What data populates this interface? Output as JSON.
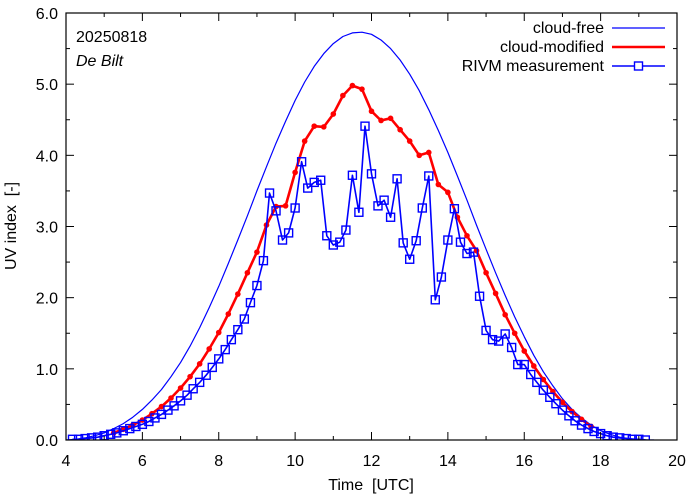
{
  "chart_data": {
    "type": "line",
    "title": "",
    "xlabel": "Time  [UTC]",
    "ylabel": "UV index  [-]",
    "xlim": [
      4,
      20
    ],
    "ylim": [
      0,
      6
    ],
    "x_ticks": [
      4,
      6,
      8,
      10,
      12,
      14,
      16,
      18,
      20
    ],
    "x_tick_labels": [
      "4",
      "6",
      "8",
      "10",
      "12",
      "14",
      "16",
      "18",
      "20"
    ],
    "x_minor_step": 1,
    "y_ticks": [
      0,
      1,
      2,
      3,
      4,
      5,
      6
    ],
    "y_tick_labels": [
      "0.0",
      "1.0",
      "2.0",
      "3.0",
      "4.0",
      "5.0",
      "6.0"
    ],
    "y_minor_step": 0.5,
    "grid": false,
    "legend_position": "top-right",
    "annotations": [
      {
        "text": "20250818",
        "style": "normal",
        "position": "top-left"
      },
      {
        "text": "De Bilt",
        "style": "italic",
        "position": "top-left"
      }
    ],
    "series": [
      {
        "name": "cloud-free",
        "color": "#0000ff",
        "style": "thin-line",
        "x": [
          4.0,
          4.25,
          4.5,
          4.75,
          5.0,
          5.25,
          5.5,
          5.75,
          6.0,
          6.25,
          6.5,
          6.75,
          7.0,
          7.25,
          7.5,
          7.75,
          8.0,
          8.25,
          8.5,
          8.75,
          9.0,
          9.25,
          9.5,
          9.75,
          10.0,
          10.25,
          10.5,
          10.75,
          11.0,
          11.25,
          11.5,
          11.75,
          12.0,
          12.25,
          12.5,
          12.75,
          13.0,
          13.25,
          13.5,
          13.75,
          14.0,
          14.25,
          14.5,
          14.75,
          15.0,
          15.25,
          15.5,
          15.75,
          16.0,
          16.25,
          16.5,
          16.75,
          17.0,
          17.25,
          17.5,
          17.75,
          18.0,
          18.25,
          18.5,
          18.75,
          19.0,
          19.25,
          19.4
        ],
        "values": [
          0.0,
          0.01,
          0.03,
          0.06,
          0.1,
          0.16,
          0.23,
          0.32,
          0.43,
          0.56,
          0.71,
          0.89,
          1.09,
          1.32,
          1.58,
          1.86,
          2.16,
          2.48,
          2.81,
          3.15,
          3.5,
          3.84,
          4.17,
          4.48,
          4.77,
          5.03,
          5.25,
          5.43,
          5.57,
          5.67,
          5.72,
          5.73,
          5.7,
          5.62,
          5.5,
          5.34,
          5.14,
          4.91,
          4.64,
          4.35,
          4.04,
          3.71,
          3.37,
          3.02,
          2.68,
          2.35,
          2.03,
          1.73,
          1.45,
          1.19,
          0.96,
          0.76,
          0.58,
          0.43,
          0.31,
          0.21,
          0.13,
          0.08,
          0.04,
          0.02,
          0.01,
          0.0,
          0.0
        ]
      },
      {
        "name": "cloud-modified",
        "color": "#ff0000",
        "style": "thick-line-dots",
        "x": [
          5.25,
          5.5,
          5.75,
          6.0,
          6.25,
          6.5,
          6.75,
          7.0,
          7.25,
          7.5,
          7.75,
          8.0,
          8.25,
          8.5,
          8.75,
          9.0,
          9.25,
          9.5,
          9.75,
          10.0,
          10.25,
          10.5,
          10.75,
          11.0,
          11.25,
          11.5,
          11.75,
          12.0,
          12.25,
          12.5,
          12.75,
          13.0,
          13.25,
          13.5,
          13.75,
          14.0,
          14.25,
          14.5,
          14.75,
          15.0,
          15.25,
          15.5,
          15.75,
          16.0,
          16.25,
          16.5,
          16.75,
          17.0,
          17.25,
          17.5,
          17.75
        ],
        "values": [
          0.1,
          0.15,
          0.21,
          0.28,
          0.37,
          0.47,
          0.59,
          0.73,
          0.89,
          1.07,
          1.28,
          1.51,
          1.77,
          2.05,
          2.35,
          2.64,
          3.02,
          3.28,
          3.29,
          3.76,
          4.2,
          4.41,
          4.4,
          4.58,
          4.84,
          4.98,
          4.93,
          4.62,
          4.49,
          4.52,
          4.36,
          4.2,
          4.0,
          4.04,
          3.59,
          3.48,
          3.13,
          2.87,
          2.66,
          2.35,
          2.06,
          1.76,
          1.5,
          1.25,
          1.04,
          0.85,
          0.68,
          0.53,
          0.4,
          0.29,
          0.19
        ]
      },
      {
        "name": "RIVM measurement",
        "color": "#0000ff",
        "style": "line-squares",
        "x": [
          4.17,
          4.33,
          4.5,
          4.67,
          4.83,
          5.0,
          5.17,
          5.33,
          5.5,
          5.67,
          5.83,
          6.0,
          6.17,
          6.33,
          6.5,
          6.67,
          6.83,
          7.0,
          7.17,
          7.33,
          7.5,
          7.67,
          7.83,
          8.0,
          8.17,
          8.33,
          8.5,
          8.67,
          8.83,
          9.0,
          9.17,
          9.33,
          9.5,
          9.67,
          9.83,
          10.0,
          10.17,
          10.33,
          10.5,
          10.67,
          10.83,
          11.0,
          11.17,
          11.33,
          11.5,
          11.67,
          11.83,
          12.0,
          12.17,
          12.33,
          12.5,
          12.67,
          12.83,
          13.0,
          13.17,
          13.33,
          13.5,
          13.67,
          13.83,
          14.0,
          14.17,
          14.33,
          14.5,
          14.67,
          14.83,
          15.0,
          15.17,
          15.33,
          15.5,
          15.67,
          15.83,
          16.0,
          16.17,
          16.33,
          16.5,
          16.67,
          16.83,
          17.0,
          17.17,
          17.33,
          17.5,
          17.67,
          17.83,
          18.0,
          18.17,
          18.33,
          18.5,
          18.67,
          18.83,
          19.0,
          19.17
        ],
        "values": [
          0.01,
          0.01,
          0.02,
          0.03,
          0.04,
          0.06,
          0.08,
          0.1,
          0.13,
          0.16,
          0.19,
          0.22,
          0.26,
          0.31,
          0.36,
          0.42,
          0.48,
          0.55,
          0.63,
          0.72,
          0.81,
          0.91,
          1.02,
          1.14,
          1.27,
          1.41,
          1.55,
          1.7,
          1.93,
          2.17,
          2.52,
          3.47,
          3.22,
          2.81,
          2.91,
          3.26,
          3.91,
          3.54,
          3.62,
          3.65,
          2.87,
          2.74,
          2.78,
          2.95,
          3.72,
          3.2,
          4.41,
          3.74,
          3.29,
          3.37,
          3.13,
          3.67,
          2.77,
          2.54,
          2.8,
          3.26,
          3.71,
          1.97,
          2.29,
          2.81,
          3.25,
          2.78,
          2.62,
          2.64,
          2.02,
          1.54,
          1.41,
          1.39,
          1.49,
          1.3,
          1.06,
          1.06,
          0.92,
          0.81,
          0.7,
          0.6,
          0.51,
          0.42,
          0.34,
          0.27,
          0.21,
          0.16,
          0.12,
          0.09,
          0.06,
          0.04,
          0.03,
          0.02,
          0.01,
          0.01,
          0.0
        ]
      }
    ]
  }
}
